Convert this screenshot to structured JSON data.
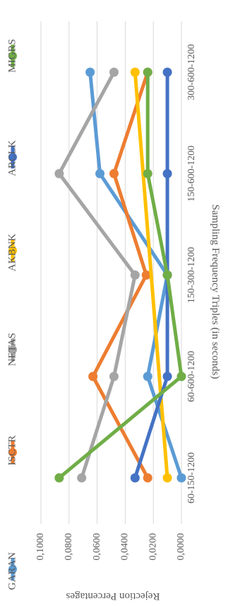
{
  "chart_data": {
    "type": "line",
    "orientation": "rotated-90-clockwise",
    "title": "",
    "xlabel": "Sampling Frequency Triples (in seconds)",
    "ylabel": "Rejection Percentages",
    "categories": [
      "60-150-1200",
      "60-600-1200",
      "150-300-1200",
      "150-600-1200",
      "300-600-1200"
    ],
    "ylim": [
      0,
      0.1
    ],
    "yticks": [
      "0,0000",
      "0,0200",
      "0,0400",
      "0,0600",
      "0,0800",
      "0,1000"
    ],
    "grid": true,
    "legend_position": "top",
    "series": [
      {
        "name": "GARAN",
        "color": "#5B9BD5",
        "values": [
          0.0,
          0.024,
          0.01,
          0.058,
          0.065
        ],
        "label": "GARAN"
      },
      {
        "name": "ISCTR",
        "color": "#ED7D31",
        "values": [
          0.024,
          0.063,
          0.025,
          0.048,
          0.024
        ],
        "label": "ISCTR"
      },
      {
        "name": "NETAS",
        "color": "#A5A5A5",
        "values": [
          0.071,
          0.048,
          0.033,
          0.087,
          0.048
        ],
        "label": "NETAS"
      },
      {
        "name": "AKBNK",
        "color": "#FFC000",
        "values": [
          0.01,
          null,
          null,
          null,
          0.033
        ],
        "label": "AKBNK"
      },
      {
        "name": "ARCLK",
        "color": "#4472C4",
        "values": [
          0.033,
          0.01,
          0.01,
          0.01,
          0.01
        ],
        "label": "ARCLK"
      },
      {
        "name": "MIGRS",
        "color": "#70AD47",
        "values": [
          0.087,
          0.0,
          0.01,
          0.024,
          0.024
        ],
        "label": "MIGRS"
      }
    ]
  }
}
